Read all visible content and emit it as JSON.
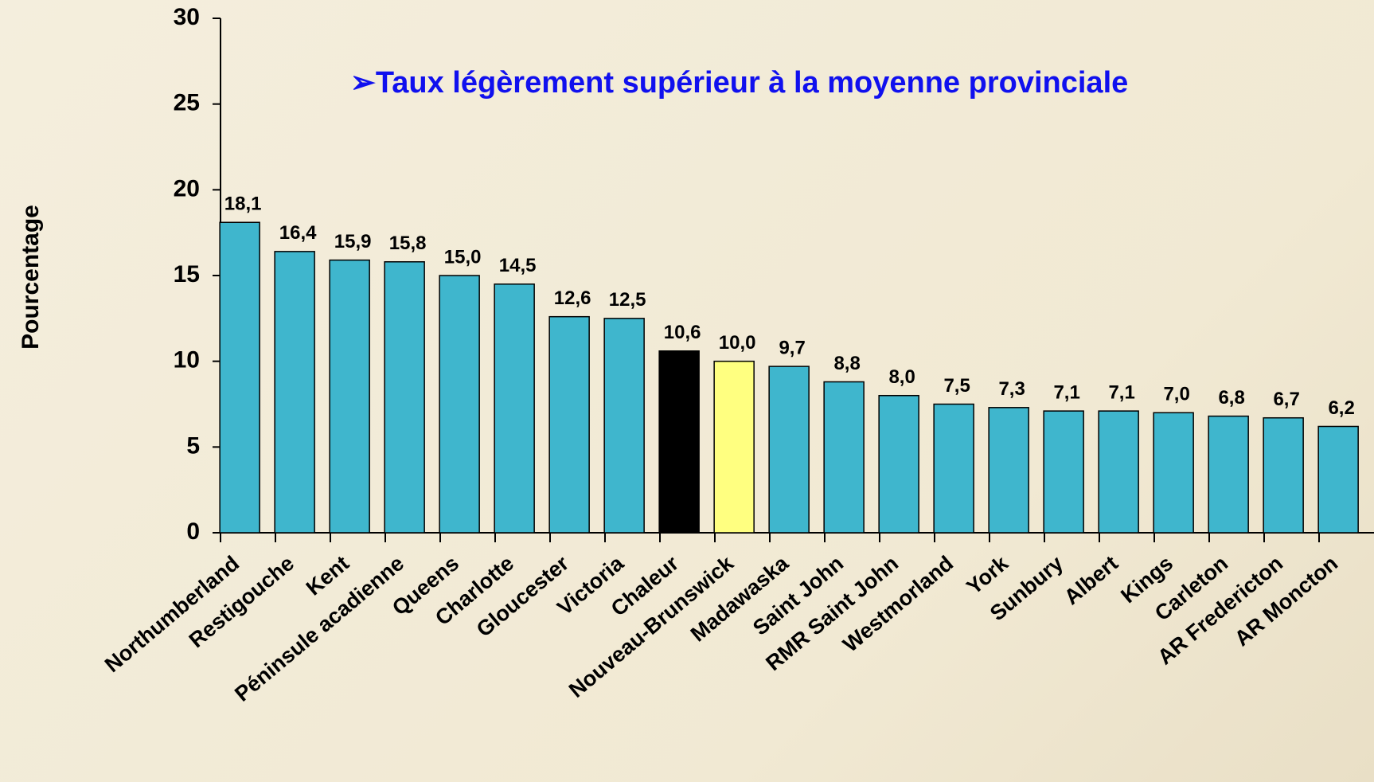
{
  "chart_data": {
    "type": "bar",
    "annotation": "➢Taux légèrement supérieur à la moyenne provinciale",
    "y_label": "Pourcentage",
    "categories": [
      "Northumberland",
      "Restigouche",
      "Kent",
      "Péninsule acadienne",
      "Queens",
      "Charlotte",
      "Gloucester",
      "Victoria",
      "Chaleur",
      "Nouveau-Brunswick",
      "Madawaska",
      "Saint John",
      "RMR Saint John",
      "Westmorland",
      "York",
      "Sunbury",
      "Albert",
      "Kings",
      "Carleton",
      "AR Fredericton",
      "AR Moncton"
    ],
    "values": [
      18.1,
      16.4,
      15.9,
      15.8,
      15.0,
      14.5,
      12.6,
      12.5,
      10.6,
      10.0,
      9.7,
      8.8,
      8.0,
      7.5,
      7.3,
      7.1,
      7.1,
      7.0,
      6.8,
      6.7,
      6.2
    ],
    "value_labels": [
      "18,1",
      "16,4",
      "15,9",
      "15,8",
      "15,0",
      "14,5",
      "12,6",
      "12,5",
      "10,6",
      "10,0",
      "9,7",
      "8,8",
      "8,0",
      "7,5",
      "7,3",
      "7,1",
      "7,1",
      "7,0",
      "6,8",
      "6,7",
      "6,2"
    ],
    "colors": [
      "#3fb6cd",
      "#3fb6cd",
      "#3fb6cd",
      "#3fb6cd",
      "#3fb6cd",
      "#3fb6cd",
      "#3fb6cd",
      "#3fb6cd",
      "#000000",
      "#ffff80",
      "#3fb6cd",
      "#3fb6cd",
      "#3fb6cd",
      "#3fb6cd",
      "#3fb6cd",
      "#3fb6cd",
      "#3fb6cd",
      "#3fb6cd",
      "#3fb6cd",
      "#3fb6cd",
      "#3fb6cd"
    ],
    "ylim": [
      0,
      30
    ],
    "yticks": [
      0,
      5,
      10,
      15,
      20,
      25,
      30
    ]
  }
}
